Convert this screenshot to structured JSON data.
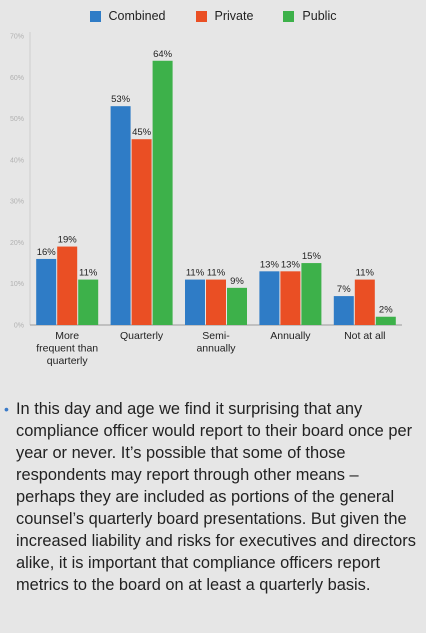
{
  "chart_data": {
    "type": "bar",
    "categories": [
      [
        "More",
        "frequent than",
        "quarterly"
      ],
      [
        "Quarterly"
      ],
      [
        "Semi-",
        "annually"
      ],
      [
        "Annually"
      ],
      [
        "Not at all"
      ]
    ],
    "series": [
      {
        "name": "Combined",
        "color": "#2f7cc6",
        "values": [
          16,
          53,
          11,
          13,
          7
        ],
        "labels": [
          "16%",
          "53%",
          "11%",
          "13%",
          "7%"
        ]
      },
      {
        "name": "Private",
        "color": "#ea4f24",
        "values": [
          19,
          45,
          11,
          13,
          11
        ],
        "labels": [
          "19%",
          "45%",
          "11%",
          "13%",
          "11%"
        ]
      },
      {
        "name": "Public",
        "color": "#3db14a",
        "values": [
          11,
          64,
          9,
          15,
          2
        ],
        "labels": [
          "11%",
          "64%",
          "9%",
          "15%",
          "2%"
        ]
      }
    ],
    "yticks": [
      "0%",
      "10%",
      "20%",
      "30%",
      "40%",
      "50%",
      "60%",
      "70%"
    ],
    "ylim": [
      0,
      70
    ],
    "grid": false,
    "legend_position": "top-center"
  },
  "legend": [
    {
      "label": "Combined",
      "color": "#2f7cc6"
    },
    {
      "label": "Private",
      "color": "#ea4f24"
    },
    {
      "label": "Public",
      "color": "#3db14a"
    }
  ],
  "body_text": {
    "bullet": "•",
    "paragraph": "In this day and age we find it surprising that any compliance officer would report to their board once per year or never. It’s possible that some of those respondents may report through other means – perhaps they are included as portions of the general counsel’s quarterly board presentations. But given the increased liability and risks for executives and directors alike, it is important that compliance officers report metrics to the board on at least a quarterly basis."
  }
}
